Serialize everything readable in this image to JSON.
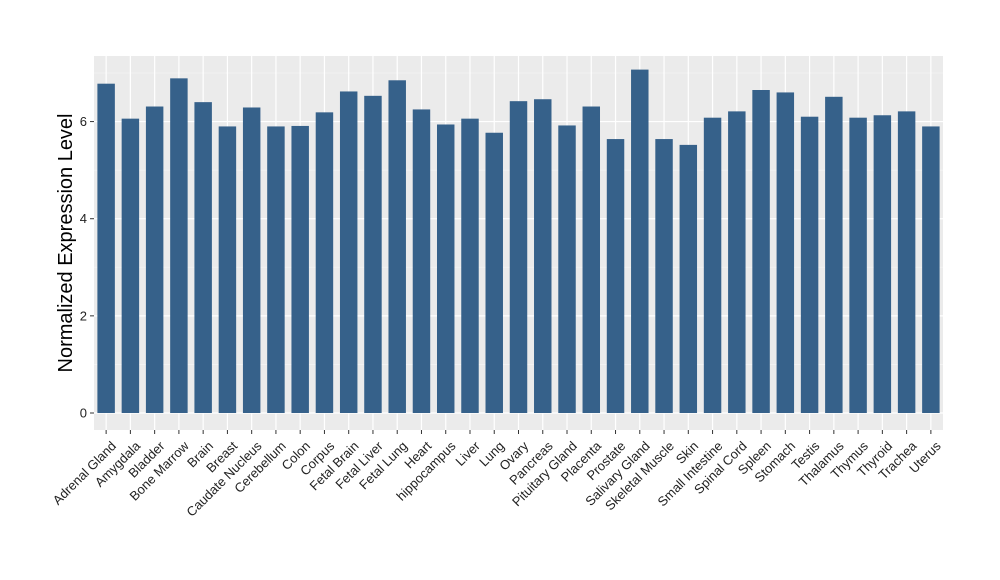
{
  "chart_data": {
    "type": "bar",
    "title": "",
    "xlabel": "",
    "ylabel": "Normalized Expression Level",
    "ylim": [
      -0.35,
      7.35
    ],
    "yticks": [
      0,
      2,
      4,
      6
    ],
    "grid": true,
    "legend": "none",
    "colors": {
      "bar": "#36618a",
      "panel": "#ebebeb",
      "grid_major": "#ffffff",
      "grid_minor": "#f4f4f4",
      "tick": "#333333"
    },
    "categories": [
      "Adrenal Gland",
      "Amygdala",
      "Bladder",
      "Bone Marrow",
      "Brain",
      "Breast",
      "Caudate Nucleus",
      "Cerebellum",
      "Colon",
      "Corpus",
      "Fetal Brain",
      "Fetal Liver",
      "Fetal Lung",
      "Heart",
      "hippocampus",
      "Liver",
      "Lung",
      "Ovary",
      "Pancreas",
      "Pituitary Gland",
      "Placenta",
      "Prostate",
      "Salivary Gland",
      "Skeletal Muscle",
      "Skin",
      "Small Intestine",
      "Spinal Cord",
      "Spleen",
      "Stomach",
      "Testis",
      "Thalamus",
      "Thymus",
      "Thyroid",
      "Trachea",
      "Uterus"
    ],
    "values": [
      6.78,
      6.06,
      6.31,
      6.89,
      6.4,
      5.9,
      6.29,
      5.9,
      5.91,
      6.19,
      6.62,
      6.53,
      6.85,
      6.25,
      5.94,
      6.06,
      5.77,
      6.42,
      6.46,
      5.92,
      6.31,
      5.64,
      7.07,
      5.64,
      5.52,
      6.08,
      6.21,
      6.65,
      6.6,
      6.1,
      6.51,
      6.08,
      6.13,
      6.21,
      5.9
    ]
  }
}
